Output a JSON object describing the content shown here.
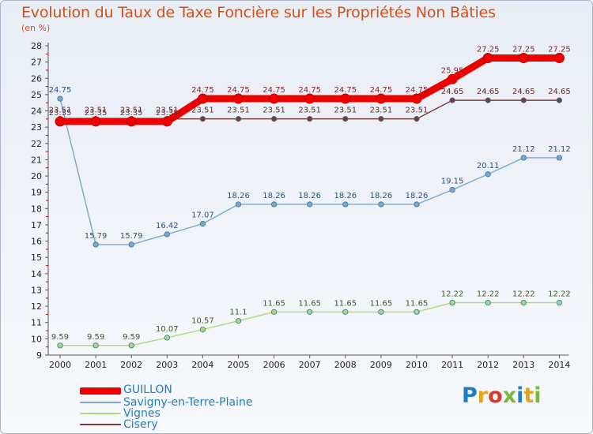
{
  "title": "Evolution du Taux de Taxe Foncière sur les Propriétés Non Bâties",
  "subtitle": "(en %)",
  "logo_text": "Proxiti",
  "colors": {
    "title": "#d0501d",
    "legend_text": "#1d7fc2",
    "axis": "#555555",
    "tick_mark": "#cc0000"
  },
  "chart_data": {
    "type": "line",
    "title": "Evolution du Taux de Taxe Foncière sur les Propriétés Non Bâties",
    "ylabel": "(en %)",
    "xlabel": "",
    "ylim": [
      9,
      28
    ],
    "yticks": [
      9,
      10,
      11,
      12,
      13,
      14,
      15,
      16,
      17,
      18,
      19,
      20,
      21,
      22,
      23,
      24,
      25,
      26,
      27,
      28
    ],
    "categories": [
      "2000",
      "2001",
      "2002",
      "2003",
      "2004",
      "2005",
      "2006",
      "2007",
      "2008",
      "2009",
      "2010",
      "2011",
      "2012",
      "2013",
      "2014"
    ],
    "grid": false,
    "legend_position": "bottom-left",
    "series": [
      {
        "name": "GUILLON",
        "color": "#ee0000",
        "values": [
          23.35,
          23.35,
          23.35,
          23.35,
          24.75,
          24.75,
          24.75,
          24.75,
          24.75,
          24.75,
          24.75,
          25.95,
          27.25,
          27.25,
          27.25
        ],
        "labels": [
          "23.35",
          "23.35",
          "23.35",
          "23.35",
          "24.75",
          "24.75",
          "24.75",
          "24.75",
          "24.75",
          "24.75",
          "24.75",
          "25.95",
          "27.25",
          "27.25",
          "27.25"
        ]
      },
      {
        "name": "Savigny-en-Terre-Plaine",
        "color": "#78a8d0",
        "values": [
          24.75,
          15.79,
          15.79,
          16.42,
          17.07,
          18.26,
          18.26,
          18.26,
          18.26,
          18.26,
          18.26,
          19.15,
          20.11,
          21.12,
          21.12
        ],
        "labels": [
          "24.75",
          "15.79",
          "15.79",
          "16.42",
          "17.07",
          "18.26",
          "18.26",
          "18.26",
          "18.26",
          "18.26",
          "18.26",
          "19.15",
          "20.11",
          "21.12",
          "21.12"
        ]
      },
      {
        "name": "Vignes",
        "color": "#a8dc78",
        "values": [
          9.59,
          9.59,
          9.59,
          10.07,
          10.57,
          11.1,
          11.65,
          11.65,
          11.65,
          11.65,
          11.65,
          12.22,
          12.22,
          12.22,
          12.22
        ],
        "labels": [
          "9.59",
          "9.59",
          "9.59",
          "10.07",
          "10.57",
          "11.1",
          "11.65",
          "11.65",
          "11.65",
          "11.65",
          "11.65",
          "12.22",
          "12.22",
          "12.22",
          "12.22"
        ]
      },
      {
        "name": "Cisery",
        "color": "#7a3a3a",
        "values": [
          23.51,
          23.51,
          23.51,
          23.51,
          23.51,
          23.51,
          23.51,
          23.51,
          23.51,
          23.51,
          23.51,
          24.65,
          24.65,
          24.65,
          24.65
        ],
        "labels": [
          "23.51",
          "23.51",
          "23.51",
          "23.51",
          "23.51",
          "23.51",
          "23.51",
          "23.51",
          "23.51",
          "23.51",
          "23.51",
          "24.65",
          "24.65",
          "24.65",
          "24.65"
        ]
      }
    ]
  }
}
